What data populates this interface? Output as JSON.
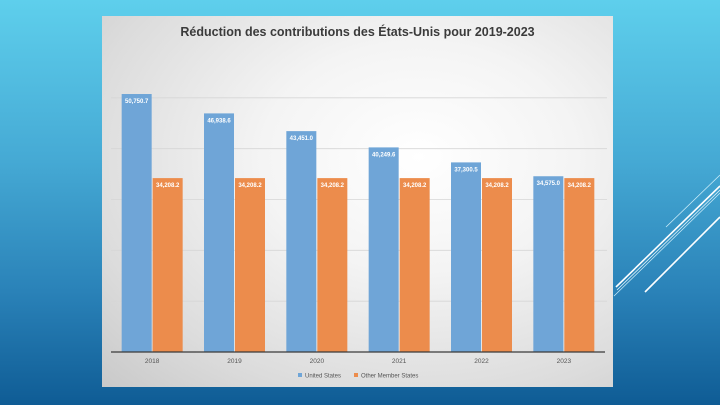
{
  "chart_data": {
    "type": "bar",
    "title": "Réduction des contributions des États-Unis pour 2019-2023",
    "xlabel": "",
    "ylabel": "",
    "categories": [
      "2018",
      "2019",
      "2020",
      "2021",
      "2022",
      "2023"
    ],
    "series": [
      {
        "name": "United States",
        "color": "#6fa5d7",
        "values": [
          50750.7,
          46938.6,
          43451.0,
          40249.6,
          37300.5,
          34575.0
        ],
        "labels": [
          "50,750.7",
          "46,938.6",
          "43,451.0",
          "40,249.6",
          "37,300.5",
          "34,575.0"
        ]
      },
      {
        "name": "Other Member States",
        "color": "#ec8c4c",
        "values": [
          34208.2,
          34208.2,
          34208.2,
          34208.2,
          34208.2,
          34208.2
        ],
        "labels": [
          "34,208.2",
          "34,208.2",
          "34,208.2",
          "34,208.2",
          "34,208.2",
          "34,208.2"
        ]
      }
    ],
    "ylim": [
      0,
      60000
    ],
    "gridlines": [
      10000,
      20000,
      30000,
      40000,
      50000
    ],
    "grid": true,
    "y_tick_labels_visible": false,
    "legend": "bottom"
  }
}
